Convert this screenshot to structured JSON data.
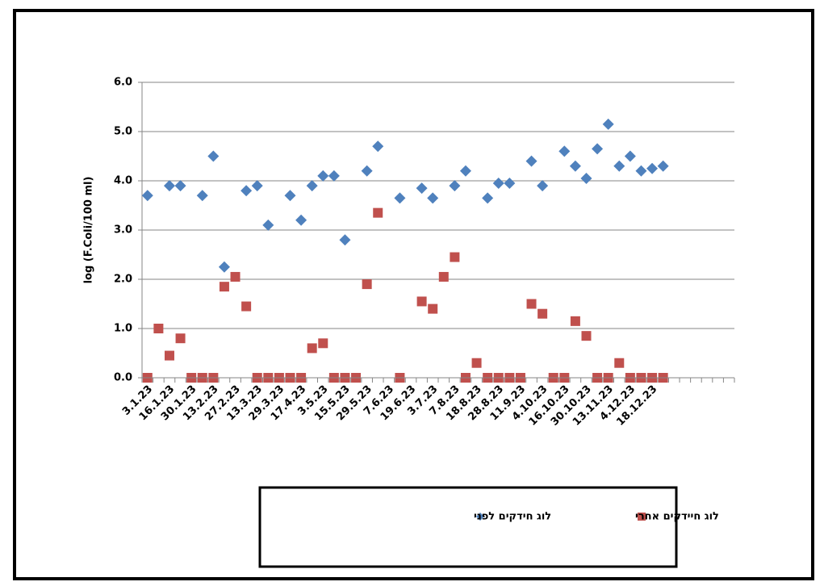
{
  "chart_data": {
    "type": "scatter",
    "y_label": "log (F.Coli/100 ml)",
    "categories": [
      "3.1.23",
      null,
      "16.1.23",
      null,
      "30.1.23",
      null,
      "13.2.23",
      null,
      "27.2.23",
      null,
      "13.3.23",
      null,
      "29.3.23",
      null,
      "17.4.23",
      null,
      "3.5.23",
      null,
      "15.5.23",
      null,
      "29.5.23",
      null,
      "7.6.23",
      null,
      "19.6.23",
      null,
      "3.7.23",
      null,
      "7.8.23",
      null,
      "18.8.23",
      null,
      "28.8.23",
      null,
      "11.9.23",
      null,
      "4.10.23",
      null,
      "16.10.23",
      null,
      "30.10.23",
      null,
      "13.11.23",
      null,
      "4.12.23",
      null,
      "18.12.23",
      null,
      null,
      null,
      null,
      null,
      null,
      null
    ],
    "series": [
      {
        "name": "לוג חידקים לפני",
        "color": "#4f81bd",
        "marker": "diamond",
        "values": [
          3.7,
          null,
          3.9,
          3.9,
          null,
          3.7,
          4.5,
          2.25,
          null,
          3.8,
          3.9,
          3.1,
          null,
          3.7,
          3.2,
          3.9,
          4.1,
          4.1,
          2.8,
          null,
          4.2,
          4.7,
          null,
          3.65,
          null,
          3.85,
          3.65,
          null,
          3.9,
          4.2,
          null,
          3.65,
          3.95,
          3.95,
          null,
          4.4,
          3.9,
          null,
          4.6,
          4.3,
          4.05,
          4.65,
          5.15,
          4.3,
          4.5,
          4.2,
          4.25,
          4.3,
          null,
          null,
          null,
          null,
          null,
          null
        ]
      },
      {
        "name": "לוג חיידקים אחרי",
        "color": "#c0504d",
        "marker": "square",
        "values": [
          0,
          1.0,
          0.45,
          0.8,
          0,
          0,
          0,
          1.85,
          2.05,
          1.45,
          0,
          0,
          0,
          0,
          0,
          0.6,
          0.7,
          0,
          0,
          0,
          1.9,
          3.35,
          null,
          0,
          null,
          1.55,
          1.4,
          2.05,
          2.45,
          0,
          0.3,
          0,
          0,
          0,
          0,
          1.5,
          1.3,
          0,
          0,
          1.15,
          0.85,
          0,
          0,
          0.3,
          0,
          0,
          0,
          0,
          null,
          null,
          null,
          null,
          null,
          null
        ]
      }
    ],
    "ylim": [
      0,
      6
    ],
    "yticks": [
      {
        "value": 0,
        "label": "0.0"
      },
      {
        "value": 1,
        "label": "1.0"
      },
      {
        "value": 2,
        "label": "2.0"
      },
      {
        "value": 3,
        "label": "3.0"
      },
      {
        "value": 4,
        "label": "4.0"
      },
      {
        "value": 5,
        "label": "5.0"
      },
      {
        "value": 6,
        "label": "6.0"
      }
    ],
    "grid": true,
    "legend": "bottom"
  }
}
